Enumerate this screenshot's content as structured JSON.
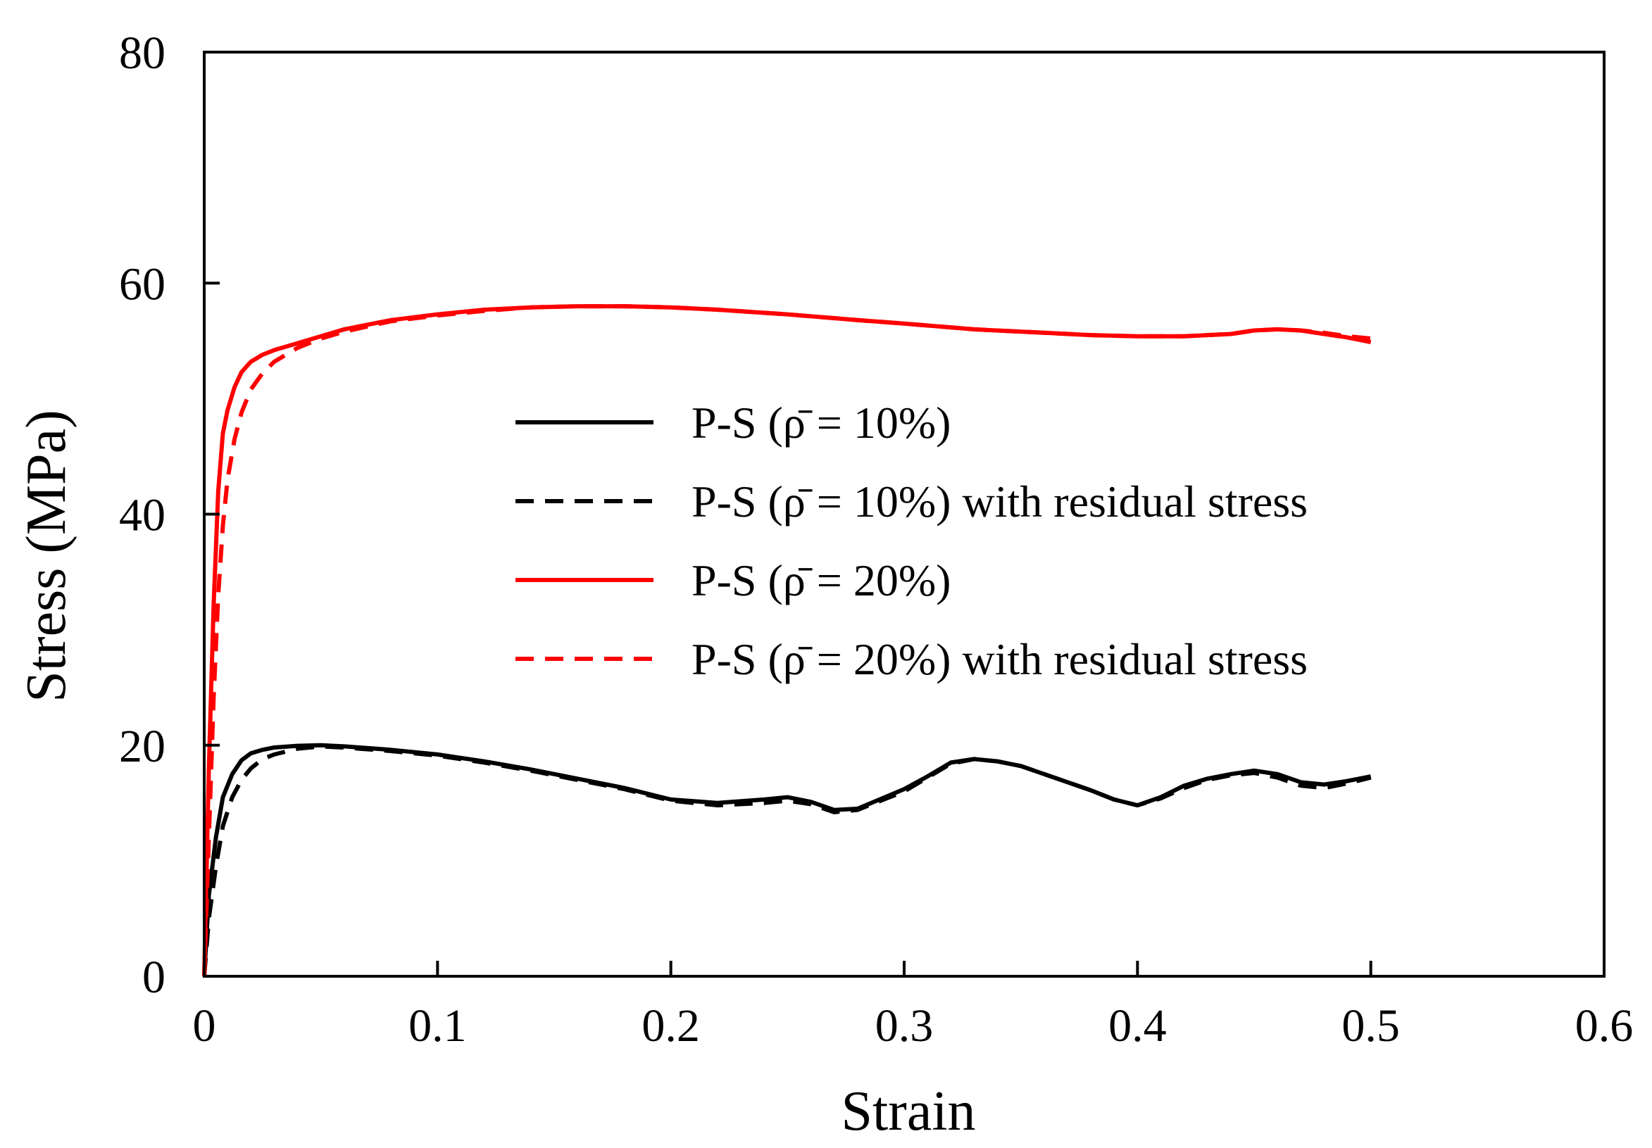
{
  "chart_data": {
    "type": "line",
    "title": "",
    "xlabel": "Strain",
    "ylabel": "Stress (MPa)",
    "xlim": [
      0,
      0.6
    ],
    "ylim": [
      0,
      80
    ],
    "xticks": [
      0,
      0.1,
      0.2,
      0.3,
      0.4,
      0.5,
      0.6
    ],
    "xtick_labels": [
      "0",
      "0.1",
      "0.2",
      "0.3",
      "0.4",
      "0.5",
      "0.6"
    ],
    "yticks": [
      0,
      20,
      40,
      60,
      80
    ],
    "ytick_labels": [
      "0",
      "20",
      "40",
      "60",
      "80"
    ],
    "grid": false,
    "legend_position": "center-right",
    "series": [
      {
        "name": "P-S (ρ̄  = 10%)",
        "color": "#000000",
        "style": "solid",
        "x": [
          0,
          0.002,
          0.005,
          0.008,
          0.012,
          0.016,
          0.02,
          0.025,
          0.03,
          0.04,
          0.05,
          0.06,
          0.08,
          0.1,
          0.12,
          0.14,
          0.16,
          0.18,
          0.2,
          0.22,
          0.24,
          0.25,
          0.26,
          0.27,
          0.28,
          0.3,
          0.31,
          0.32,
          0.33,
          0.34,
          0.35,
          0.36,
          0.38,
          0.39,
          0.4,
          0.41,
          0.42,
          0.43,
          0.44,
          0.45,
          0.46,
          0.47,
          0.48,
          0.49,
          0.5
        ],
        "y": [
          0,
          7,
          12,
          15.5,
          17.5,
          18.7,
          19.3,
          19.6,
          19.8,
          19.95,
          20.0,
          19.9,
          19.6,
          19.2,
          18.6,
          17.9,
          17.1,
          16.3,
          15.3,
          15.0,
          15.3,
          15.5,
          15.1,
          14.4,
          14.5,
          16.2,
          17.3,
          18.5,
          18.8,
          18.6,
          18.2,
          17.5,
          16.1,
          15.3,
          14.8,
          15.5,
          16.5,
          17.1,
          17.5,
          17.8,
          17.5,
          16.8,
          16.6,
          16.9,
          17.3
        ]
      },
      {
        "name": "P-S (ρ̄  = 10%) with residual stress",
        "color": "#000000",
        "style": "dashed",
        "x": [
          0,
          0.002,
          0.005,
          0.008,
          0.012,
          0.016,
          0.02,
          0.025,
          0.03,
          0.04,
          0.05,
          0.06,
          0.08,
          0.1,
          0.12,
          0.14,
          0.16,
          0.18,
          0.2,
          0.22,
          0.24,
          0.25,
          0.26,
          0.27,
          0.28,
          0.3,
          0.31,
          0.32,
          0.33,
          0.34,
          0.35,
          0.36,
          0.38,
          0.39,
          0.4,
          0.41,
          0.42,
          0.43,
          0.44,
          0.45,
          0.46,
          0.47,
          0.48,
          0.49,
          0.5
        ],
        "y": [
          0,
          5,
          9.5,
          13,
          15.5,
          17,
          18,
          18.8,
          19.2,
          19.7,
          19.9,
          19.8,
          19.5,
          19.1,
          18.5,
          17.8,
          17.0,
          16.2,
          15.2,
          14.8,
          15.0,
          15.2,
          14.9,
          14.2,
          14.4,
          16.0,
          17.2,
          18.4,
          18.8,
          18.6,
          18.2,
          17.5,
          16.1,
          15.3,
          14.8,
          15.4,
          16.3,
          17.0,
          17.4,
          17.6,
          17.2,
          16.5,
          16.3,
          16.7,
          17.2
        ]
      },
      {
        "name": "P-S (ρ̄  = 20%)",
        "color": "#ff0000",
        "style": "solid",
        "x": [
          0,
          0.002,
          0.004,
          0.006,
          0.008,
          0.01,
          0.013,
          0.016,
          0.02,
          0.025,
          0.03,
          0.04,
          0.05,
          0.06,
          0.08,
          0.1,
          0.12,
          0.14,
          0.16,
          0.18,
          0.2,
          0.22,
          0.25,
          0.28,
          0.3,
          0.33,
          0.36,
          0.38,
          0.4,
          0.42,
          0.44,
          0.45,
          0.46,
          0.47,
          0.48,
          0.49,
          0.5
        ],
        "y": [
          0,
          18,
          32,
          42,
          47,
          49,
          51,
          52.3,
          53.2,
          53.8,
          54.2,
          54.8,
          55.4,
          56.0,
          56.8,
          57.3,
          57.7,
          57.9,
          58.0,
          58.0,
          57.9,
          57.7,
          57.3,
          56.8,
          56.5,
          56.0,
          55.7,
          55.5,
          55.4,
          55.4,
          55.6,
          55.9,
          56.0,
          55.9,
          55.6,
          55.3,
          54.9
        ]
      },
      {
        "name": "P-S (ρ̄  = 20%) with residual stress",
        "color": "#ff0000",
        "style": "dashed",
        "x": [
          0,
          0.002,
          0.004,
          0.006,
          0.008,
          0.01,
          0.013,
          0.016,
          0.02,
          0.025,
          0.03,
          0.04,
          0.05,
          0.06,
          0.08,
          0.1,
          0.12,
          0.14,
          0.16,
          0.18,
          0.2,
          0.22,
          0.25,
          0.28,
          0.3,
          0.33,
          0.36,
          0.38,
          0.4,
          0.42,
          0.44,
          0.45,
          0.46,
          0.47,
          0.48,
          0.49,
          0.5
        ],
        "y": [
          0,
          12,
          24,
          33,
          39,
          43,
          46.5,
          48.8,
          50.8,
          52.2,
          53.2,
          54.4,
          55.2,
          55.8,
          56.7,
          57.2,
          57.6,
          57.9,
          58.0,
          58.0,
          57.9,
          57.7,
          57.3,
          56.8,
          56.5,
          56.0,
          55.7,
          55.5,
          55.4,
          55.4,
          55.6,
          55.9,
          56.0,
          55.9,
          55.7,
          55.4,
          55.2
        ]
      }
    ]
  }
}
